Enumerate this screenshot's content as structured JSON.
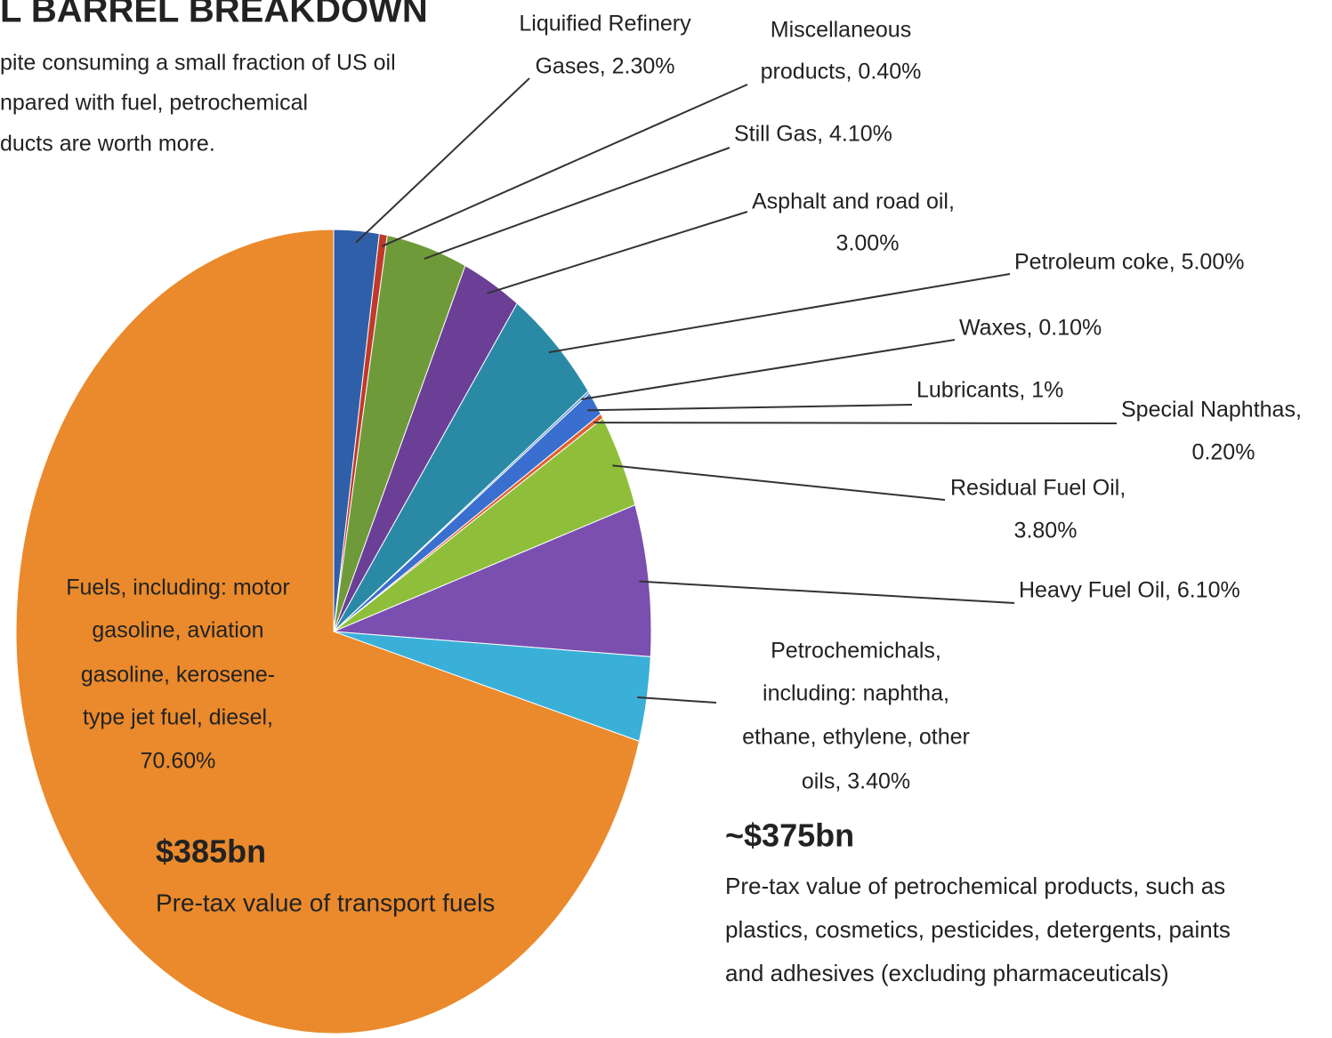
{
  "chart_data": {
    "type": "pie",
    "title": "L BARREL BREAKDOWN",
    "subtitle": [
      "pite consuming a small fraction of US oil",
      "npared with fuel, petrochemical",
      "ducts are worth more."
    ],
    "values": [
      2.3,
      0.4,
      4.1,
      3.0,
      5.0,
      0.1,
      1,
      0.2,
      3.8,
      6.1,
      3.4,
      70.6
    ],
    "labels": [
      [
        "Liquified Refinery",
        "Gases, 2.30%"
      ],
      [
        "Miscellaneous",
        "products, 0.40%"
      ],
      [
        "Still Gas, 4.10%"
      ],
      [
        "Asphalt and road oil,",
        "3.00%"
      ],
      [
        "Petroleum coke, 5.00%"
      ],
      [
        "Waxes, 0.10%"
      ],
      [
        "Lubricants, 1%"
      ],
      [
        "Special Naphthas,",
        "0.20%"
      ],
      [
        "Residual Fuel Oil,",
        "3.80%"
      ],
      [
        "Heavy Fuel Oil, 6.10%"
      ],
      [
        "Petrochemichals,",
        "including: naphtha,",
        "ethane, ethylene, other",
        "oils, 3.40%"
      ],
      [
        "Fuels, including: motor",
        "gasoline, aviation",
        "gasoline, kerosene-",
        "type jet fuel, diesel,",
        "70.60%"
      ]
    ],
    "colors": [
      "#2f5fa8",
      "#c0392b",
      "#6f9a3a",
      "#6b3f96",
      "#2a8aa6",
      "#5a8fd0",
      "#3a6fcf",
      "#e06030",
      "#8fbf3a",
      "#7a4fb0",
      "#3ab0d8",
      "#ea8a2c"
    ],
    "annotations": [
      {
        "value": "$385bn",
        "text": "Pre-tax value of transport fuels"
      },
      {
        "value": "~$375bn",
        "text": [
          "Pre-tax value of petrochemical products, such as",
          "plastics, cosmetics, pesticides, detergents, paints",
          "and adhesives (excluding pharmaceuticals)"
        ]
      }
    ]
  }
}
